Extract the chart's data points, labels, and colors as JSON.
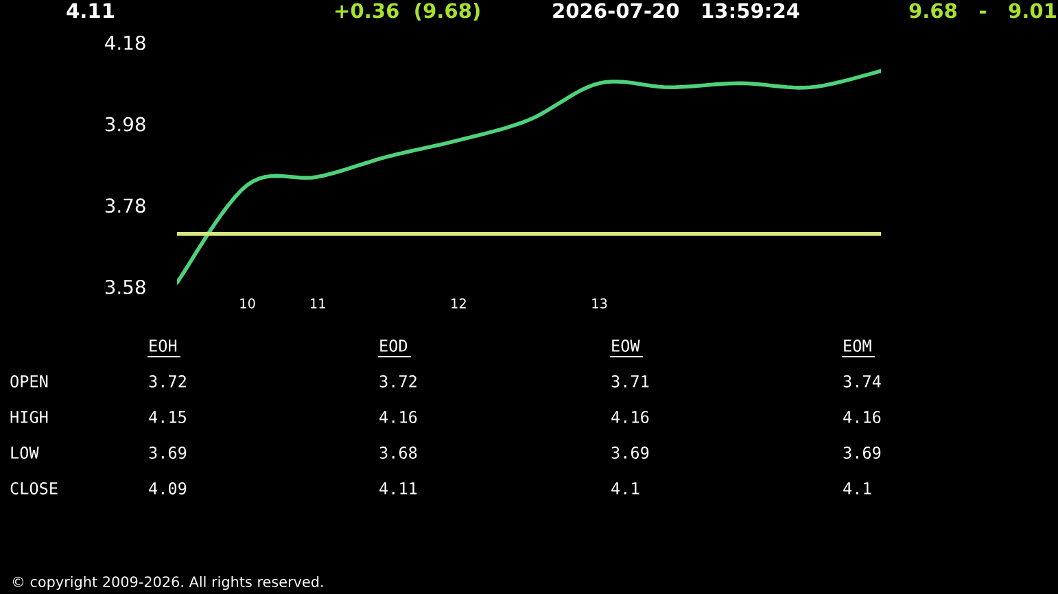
{
  "chart_data": {
    "type": "line",
    "categories": [
      null,
      "10",
      "11",
      null,
      "12",
      null,
      "13",
      null,
      null,
      null,
      null
    ],
    "series": [
      {
        "color": "#4fd17c",
        "values": [
          3.59,
          3.83,
          3.85,
          3.9,
          3.94,
          3.99,
          4.08,
          4.07,
          4.08,
          4.07,
          4.11
        ]
      }
    ],
    "ylim": [
      3.58,
      4.18
    ],
    "yticks": [
      3.58,
      3.78,
      3.98,
      4.18
    ],
    "ref_lines": [
      {
        "axis": "y",
        "value": 3.71,
        "color": "#d4e87c"
      }
    ],
    "grid": false,
    "legend": false,
    "annotations": [
      "4.11",
      "+0.36  (9.68)",
      "2026-07-20   13:59:24",
      "9.68   -   9.01",
      "EOH",
      "EOD",
      "EOW",
      "EOM",
      "OPEN",
      "3.72",
      "3.72",
      "3.71",
      "3.74",
      "HIGH",
      "4.15",
      "4.16",
      "4.16",
      "4.16",
      "LOW",
      "3.69",
      "3.68",
      "3.69",
      "3.69",
      "CLOSE",
      "4.09",
      "4.11",
      "4.1",
      "4.1",
      "© copyright 2009-2026. All rights reserved."
    ]
  }
}
